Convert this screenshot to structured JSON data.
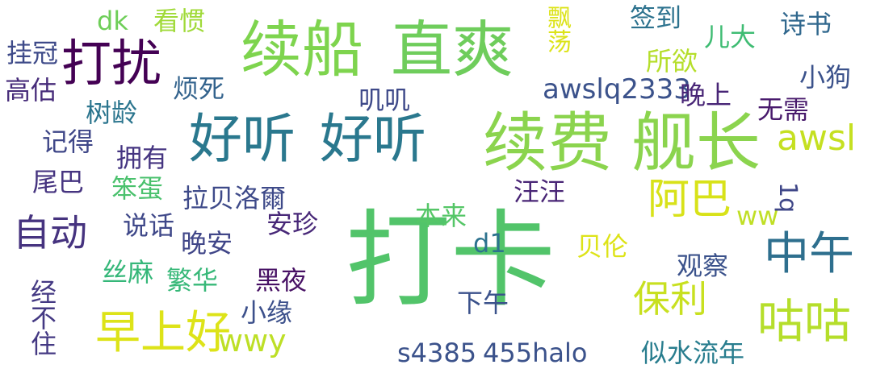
{
  "words": [
    {
      "text": "打卡",
      "color": "#52c46a"
    },
    {
      "text": "续费",
      "color": "#8bd44e"
    },
    {
      "text": "舰长",
      "color": "#8bd44e"
    },
    {
      "text": "续船",
      "color": "#7ed44e"
    },
    {
      "text": "直爽",
      "color": "#6fcd5c"
    },
    {
      "text": "好听",
      "color": "#2a788e"
    },
    {
      "text": "好听",
      "color": "#2a788e"
    },
    {
      "text": "打扰",
      "color": "#440154"
    },
    {
      "text": "早上好",
      "color": "#dde318"
    },
    {
      "text": "咕咕",
      "color": "#b5de2b"
    },
    {
      "text": "中午",
      "color": "#2e6f8e"
    },
    {
      "text": "阿巴",
      "color": "#d8e219"
    },
    {
      "text": "保利",
      "color": "#c8e020"
    },
    {
      "text": "自动",
      "color": "#46337f"
    },
    {
      "text": "awsl",
      "color": "#c5e021"
    },
    {
      "text": "awslq2333",
      "color": "#3b528b"
    },
    {
      "text": "wwy",
      "color": "#bddf26"
    },
    {
      "text": "s4385",
      "color": "#3b528b"
    },
    {
      "text": "455halo",
      "color": "#3b528b"
    },
    {
      "text": "似水流年",
      "color": "#287d8e"
    },
    {
      "text": "挂冠",
      "color": "#3e4a89"
    },
    {
      "text": "高估",
      "color": "#472c7a"
    },
    {
      "text": "树龄",
      "color": "#2b758e"
    },
    {
      "text": "记得",
      "color": "#3f4788"
    },
    {
      "text": "尾巴",
      "color": "#463480"
    },
    {
      "text": "拥有",
      "color": "#453581"
    },
    {
      "text": "笨蛋",
      "color": "#4ac16d"
    },
    {
      "text": "说话",
      "color": "#3f4889"
    },
    {
      "text": "看惯",
      "color": "#a0da39"
    },
    {
      "text": "dk",
      "color": "#6ece58"
    },
    {
      "text": "烦死",
      "color": "#33638d"
    },
    {
      "text": "叽叽",
      "color": "#3e4989"
    },
    {
      "text": "拉贝洛爾",
      "color": "#3e4a89"
    },
    {
      "text": "晚安",
      "color": "#404688"
    },
    {
      "text": "安珍",
      "color": "#482878"
    },
    {
      "text": "本来",
      "color": "#55c667"
    },
    {
      "text": "汪汪",
      "color": "#482475"
    },
    {
      "text": "签到",
      "color": "#2c728e"
    },
    {
      "text": "儿大",
      "color": "#3fbc73"
    },
    {
      "text": "所欲",
      "color": "#b5de2b"
    },
    {
      "text": "诗书",
      "color": "#31688e"
    },
    {
      "text": "晚上",
      "color": "#482576"
    },
    {
      "text": "小狗",
      "color": "#3b528b"
    },
    {
      "text": "无需",
      "color": "#481a6c"
    },
    {
      "text": "ww",
      "color": "#c0df25"
    },
    {
      "text": "1q",
      "color": "#3f4788"
    },
    {
      "text": "飘荡",
      "color": "#dce319"
    },
    {
      "text": "d1",
      "color": "#2c728e"
    },
    {
      "text": "贝伦",
      "color": "#dde318"
    },
    {
      "text": "观察",
      "color": "#3b528b"
    },
    {
      "text": "丝麻",
      "color": "#35b779"
    },
    {
      "text": "繁华",
      "color": "#37b878"
    },
    {
      "text": "黑夜",
      "color": "#471164"
    },
    {
      "text": "小缘",
      "color": "#3c508b"
    },
    {
      "text": "下午",
      "color": "#3b528b"
    },
    {
      "text": "经不住",
      "color": "#443983"
    }
  ]
}
